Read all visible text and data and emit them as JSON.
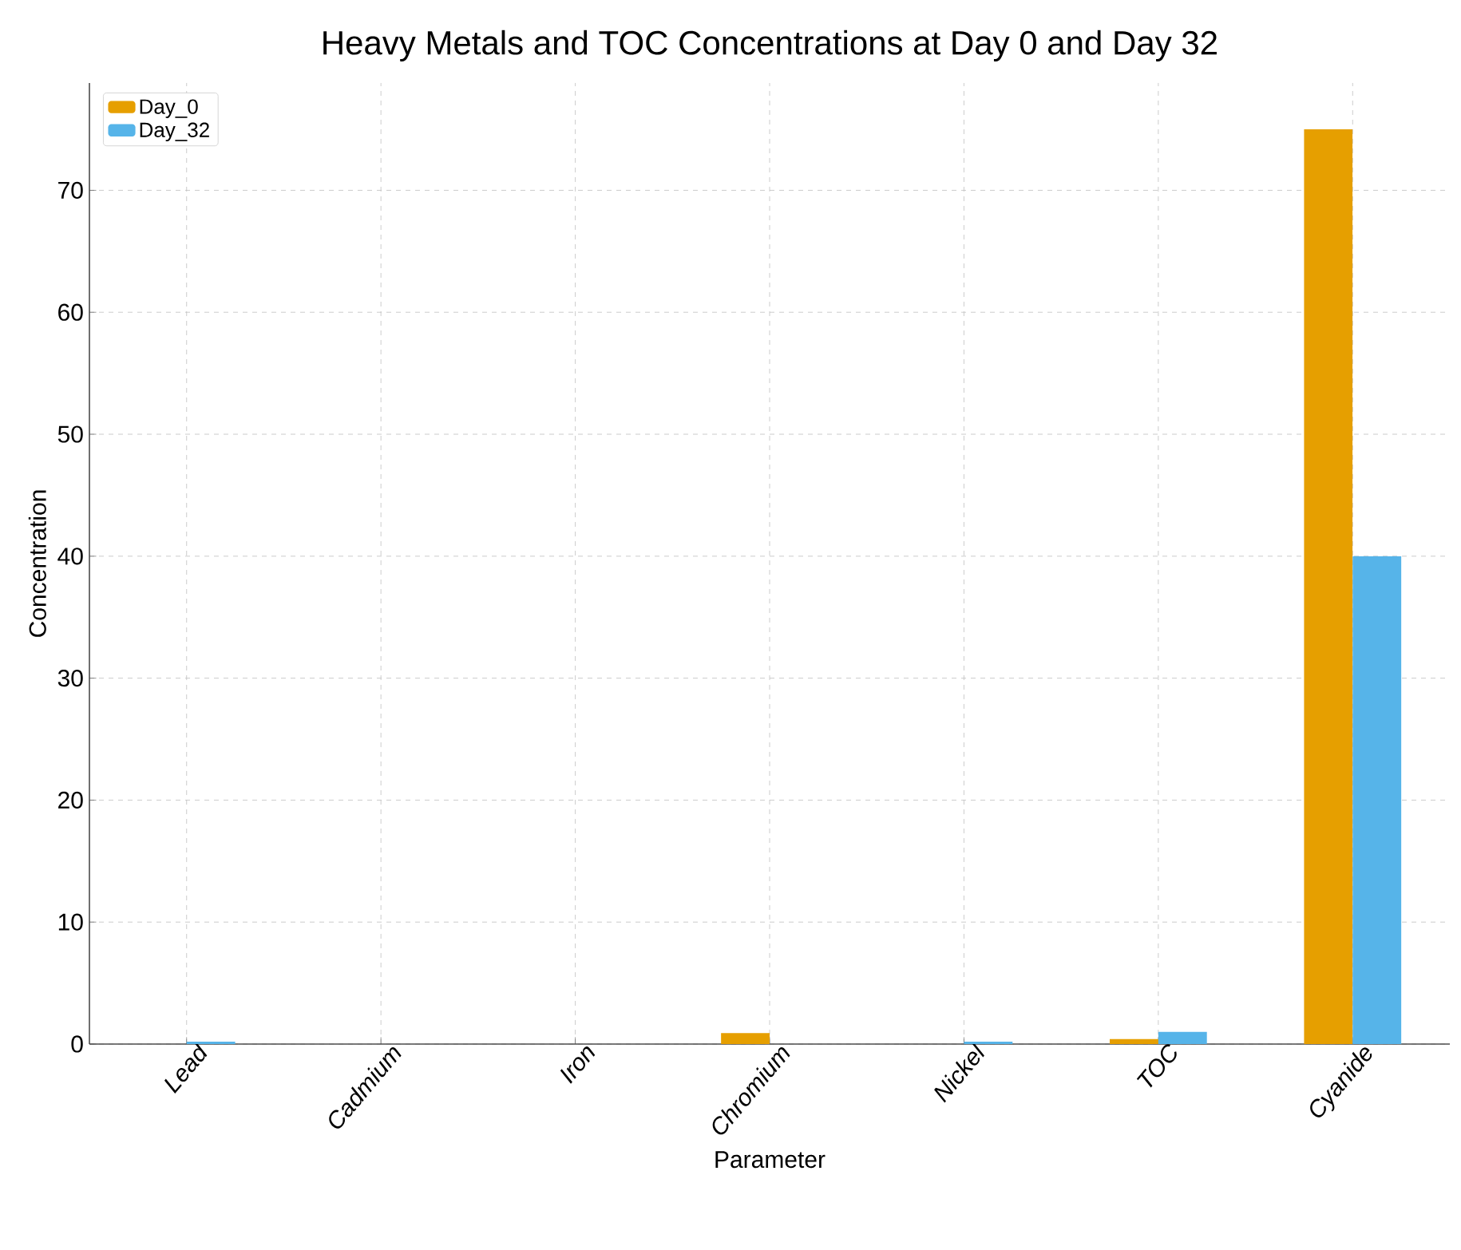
{
  "chart_data": {
    "type": "bar",
    "title": "Heavy Metals and TOC Concentrations at Day 0 and Day 32",
    "xlabel": "Parameter",
    "ylabel": "Concentration",
    "categories": [
      "Lead",
      "Cadmium",
      "Iron",
      "Chromium",
      "Nickel",
      "TOC",
      "Cyanide"
    ],
    "series": [
      {
        "name": "Day_0",
        "color": "#e69f00",
        "values": [
          0,
          0,
          0,
          0.9,
          0,
          0.4,
          75
        ]
      },
      {
        "name": "Day_32",
        "color": "#56b4e9",
        "values": [
          0.2,
          0,
          0,
          0,
          0.2,
          1,
          40
        ]
      }
    ],
    "ylim": [
      0,
      78.8
    ],
    "yticks": [
      0,
      10,
      20,
      30,
      40,
      50,
      60,
      70
    ],
    "grid": true,
    "legend": "top left"
  }
}
